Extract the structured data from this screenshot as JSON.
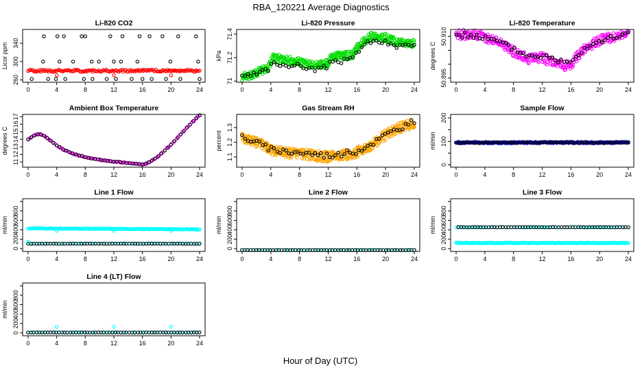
{
  "page": {
    "title": "RBA_120221  Average Diagnostics",
    "xlabel": "Hour of Day (UTC)"
  },
  "colors": {
    "black": "#000000",
    "red": "#ff0000",
    "green": "#00dd00",
    "magenta": "#ff00ff",
    "orange": "#ffa500",
    "blue": "#0000cc",
    "cyan": "#00ffff"
  },
  "chart_data": [
    {
      "id": "co2",
      "type": "scatter",
      "title": "Li-820 CO2",
      "ylabel": "Licor ppm",
      "xlim": [
        0,
        24
      ],
      "ylim": [
        255,
        370
      ],
      "xticks": [
        0,
        4,
        8,
        12,
        16,
        20,
        24
      ],
      "yticks": [
        260,
        300,
        340
      ],
      "series": [
        {
          "name": "Red",
          "color": "red",
          "x": [
            0,
            24
          ],
          "y": [
            280,
            280
          ],
          "band": 2.5,
          "n": 150,
          "seed": 1
        },
        {
          "name": "Black",
          "color": "black",
          "x": [
            0.5,
            2.1,
            2.2,
            2.8,
            3.9,
            4.1,
            4.4,
            5.0,
            5.2,
            6.3,
            7.5,
            7.8,
            8.0,
            8.9,
            9.0,
            9.9,
            11.0,
            11.5,
            12.0,
            12.3,
            13.0,
            13.2,
            14.5,
            15.3,
            15.6,
            16.0,
            17.0,
            17.3,
            18.8,
            19.3,
            19.9,
            21.0,
            21.3,
            23.5,
            23.8,
            24.0
          ],
          "y": [
            262,
            300,
            355,
            262,
            262,
            355,
            300,
            355,
            262,
            300,
            355,
            262,
            355,
            300,
            262,
            300,
            262,
            355,
            300,
            262,
            300,
            355,
            262,
            300,
            355,
            262,
            355,
            262,
            355,
            262,
            300,
            355,
            262,
            355,
            300,
            262
          ],
          "n": 0
        },
        {
          "name": "Red outliers",
          "color": "red",
          "x": [
            4,
            12,
            20
          ],
          "y": [
            270,
            270,
            270
          ],
          "n": 0
        }
      ]
    },
    {
      "id": "pressure",
      "type": "scatter",
      "title": "Li-820 Pressure",
      "ylabel": "kPa",
      "xlim": [
        0,
        24
      ],
      "ylim": [
        70.99,
        71.44
      ],
      "xticks": [
        0,
        4,
        8,
        12,
        16,
        20,
        24
      ],
      "yticks": [
        71.0,
        71.2,
        71.4
      ],
      "series": [
        {
          "name": "Green",
          "color": "green",
          "x": [
            0,
            2,
            3.8,
            4.2,
            6,
            8,
            10,
            12,
            12.5,
            14,
            15.5,
            16,
            17,
            18,
            20,
            21.5,
            22,
            24
          ],
          "y": [
            71.03,
            71.07,
            71.12,
            71.2,
            71.18,
            71.16,
            71.13,
            71.15,
            71.22,
            71.21,
            71.23,
            71.28,
            71.34,
            71.38,
            71.37,
            71.33,
            71.34,
            71.32
          ],
          "band": 0.035,
          "n": 420,
          "seed": 2
        },
        {
          "name": "Black",
          "color": "black",
          "x": [
            0,
            2,
            3.8,
            4.2,
            6,
            8,
            10,
            12,
            12.5,
            14,
            15.5,
            16,
            17,
            18,
            20,
            21.5,
            22,
            24
          ],
          "y": [
            71.03,
            71.06,
            71.1,
            71.15,
            71.14,
            71.13,
            71.1,
            71.12,
            71.18,
            71.17,
            71.19,
            71.25,
            71.31,
            71.34,
            71.33,
            71.29,
            71.31,
            71.29
          ],
          "band": 0.02,
          "n": 60,
          "seed": 3
        }
      ]
    },
    {
      "id": "li820temp",
      "type": "scatter",
      "title": "Li-820 Temperature",
      "ylabel": "degrees C",
      "xlim": [
        0,
        24
      ],
      "ylim": [
        50.8935,
        50.9125
      ],
      "xticks": [
        0,
        4,
        8,
        12,
        16,
        20,
        24
      ],
      "yticks": [
        50.895,
        50.9,
        50.905,
        50.91
      ],
      "yticklabels": [
        "50.895",
        "",
        "",
        "50.910"
      ],
      "series": [
        {
          "name": "Magenta",
          "color": "magenta",
          "x": [
            0,
            2,
            4,
            6,
            8,
            10,
            12,
            14,
            15,
            16,
            18,
            20,
            22,
            24
          ],
          "y": [
            50.9105,
            50.911,
            50.9095,
            50.908,
            50.9045,
            50.902,
            50.9025,
            50.9,
            50.8995,
            50.9,
            50.906,
            50.9085,
            50.91,
            50.9115
          ],
          "band": 0.0018,
          "n": 300,
          "seed": 4
        },
        {
          "name": "Black",
          "color": "black",
          "x": [
            0,
            2,
            4,
            6,
            8,
            10,
            12,
            14,
            15,
            16,
            18,
            20,
            22,
            24
          ],
          "y": [
            50.9105,
            50.9105,
            50.9095,
            50.908,
            50.9055,
            50.903,
            50.903,
            50.9015,
            50.901,
            50.9015,
            50.906,
            50.9085,
            50.9095,
            50.911
          ],
          "band": 0.001,
          "n": 60,
          "seed": 5
        }
      ]
    },
    {
      "id": "ambient",
      "type": "scatter",
      "title": "Ambient Box Temperature",
      "ylabel": "degrees C",
      "xlim": [
        0,
        24
      ],
      "ylim": [
        10.3,
        17.3
      ],
      "xticks": [
        0,
        4,
        8,
        12,
        16,
        20,
        24
      ],
      "yticks": [
        11,
        12,
        13,
        14,
        15,
        16,
        17
      ],
      "series": [
        {
          "name": "Magenta",
          "color": "magenta",
          "x": [
            0,
            0.5,
            1,
            1.5,
            2,
            2.5,
            3,
            4,
            5,
            6,
            7,
            8,
            9,
            10,
            11,
            12,
            13,
            14,
            15,
            16,
            16.5,
            17,
            18,
            19,
            20,
            21,
            22,
            23,
            24
          ],
          "y": [
            14.0,
            14.3,
            14.6,
            14.7,
            14.6,
            14.3,
            13.9,
            13.2,
            12.6,
            12.2,
            11.9,
            11.65,
            11.45,
            11.3,
            11.15,
            11.05,
            10.95,
            10.85,
            10.75,
            10.65,
            10.75,
            11.0,
            11.6,
            12.4,
            13.3,
            14.3,
            15.3,
            16.3,
            17.2
          ],
          "band": 0.06,
          "n": 90,
          "seed": 6
        },
        {
          "name": "Black",
          "color": "black",
          "x": [
            0,
            0.5,
            1,
            1.5,
            2,
            2.5,
            3,
            4,
            5,
            6,
            7,
            8,
            9,
            10,
            11,
            12,
            13,
            14,
            15,
            16,
            16.5,
            17,
            18,
            19,
            20,
            21,
            22,
            23,
            24
          ],
          "y": [
            14.0,
            14.3,
            14.6,
            14.7,
            14.6,
            14.3,
            13.9,
            13.2,
            12.6,
            12.2,
            11.9,
            11.65,
            11.45,
            11.3,
            11.15,
            11.05,
            10.95,
            10.85,
            10.75,
            10.65,
            10.75,
            11.0,
            11.6,
            12.4,
            13.3,
            14.3,
            15.3,
            16.3,
            17.2
          ],
          "band": 0.03,
          "n": 55,
          "seed": 7
        }
      ]
    },
    {
      "id": "rh",
      "type": "scatter",
      "title": "Gas Stream RH",
      "ylabel": "percent",
      "xlim": [
        0,
        24
      ],
      "ylim": [
        1.03,
        1.39
      ],
      "xticks": [
        0,
        4,
        8,
        12,
        16,
        20,
        24
      ],
      "yticks": [
        1.1,
        1.2,
        1.3
      ],
      "series": [
        {
          "name": "Orange",
          "color": "orange",
          "x": [
            0,
            2,
            4,
            6,
            8,
            10,
            12,
            14,
            16,
            18,
            20,
            22,
            24
          ],
          "y": [
            1.23,
            1.2,
            1.15,
            1.13,
            1.12,
            1.11,
            1.1,
            1.11,
            1.13,
            1.18,
            1.25,
            1.3,
            1.33
          ],
          "band": 0.035,
          "n": 420,
          "seed": 8
        },
        {
          "name": "Black",
          "color": "black",
          "x": [
            0,
            2,
            4,
            6,
            8,
            10,
            12,
            14,
            16,
            18,
            20,
            22,
            24
          ],
          "y": [
            1.24,
            1.2,
            1.15,
            1.14,
            1.13,
            1.12,
            1.11,
            1.12,
            1.14,
            1.19,
            1.25,
            1.3,
            1.34
          ],
          "band": 0.02,
          "n": 60,
          "seed": 9
        }
      ]
    },
    {
      "id": "sampleflow",
      "type": "scatter",
      "title": "Sample Flow",
      "ylabel": "ml/min",
      "xlim": [
        0,
        24
      ],
      "ylim": [
        -10,
        215
      ],
      "xticks": [
        0,
        4,
        8,
        12,
        16,
        20,
        24
      ],
      "yticks": [
        0,
        50,
        100,
        150,
        200
      ],
      "yticklabels": [
        "0",
        "",
        "100",
        "",
        "200"
      ],
      "series": [
        {
          "name": "Blue",
          "color": "blue",
          "x": [
            0,
            24
          ],
          "y": [
            95,
            95
          ],
          "band": 3,
          "n": 220,
          "seed": 10
        },
        {
          "name": "Black",
          "color": "black",
          "x": [
            0,
            24
          ],
          "y": [
            95,
            95
          ],
          "band": 2,
          "n": 75,
          "seed": 11
        }
      ]
    },
    {
      "id": "line1",
      "type": "scatter",
      "title": "Line 1 Flow",
      "ylabel": "ml/min",
      "xlim": [
        0,
        24
      ],
      "ylim": [
        -60,
        1060
      ],
      "xticks": [
        0,
        4,
        8,
        12,
        16,
        20,
        24
      ],
      "yticks": [
        0,
        200,
        400,
        600,
        800,
        1000
      ],
      "yticklabels": [
        "0",
        "200",
        "400",
        "600",
        "800",
        ""
      ],
      "series": [
        {
          "name": "Cyan high",
          "color": "cyan",
          "x": [
            0,
            24
          ],
          "y": [
            430,
            410
          ],
          "band": 6,
          "n": 160,
          "seed": 12
        },
        {
          "name": "Cyan low",
          "color": "cyan",
          "x": [
            0,
            24
          ],
          "y": [
            110,
            110
          ],
          "band": 3,
          "n": 40,
          "seed": 13
        },
        {
          "name": "Black",
          "color": "black",
          "x": [
            0,
            24
          ],
          "y": [
            105,
            105
          ],
          "band": 2,
          "n": 62,
          "seed": 14
        },
        {
          "name": "Cyan outliers",
          "color": "cyan",
          "x": [
            0,
            4,
            12,
            20
          ],
          "y": [
            145,
            380,
            380,
            380
          ],
          "n": 0
        }
      ]
    },
    {
      "id": "line2",
      "type": "scatter",
      "title": "Line 2 Flow",
      "ylabel": "ml/min",
      "xlim": [
        0,
        24
      ],
      "ylim": [
        -60,
        1060
      ],
      "xticks": [
        0,
        4,
        8,
        12,
        16,
        20,
        24
      ],
      "yticks": [
        0,
        200,
        400,
        600,
        800,
        1000
      ],
      "yticklabels": [
        "0",
        "200",
        "400",
        "600",
        "800",
        ""
      ],
      "series": [
        {
          "name": "Cyan",
          "color": "cyan",
          "x": [
            0,
            24
          ],
          "y": [
            -28,
            -28
          ],
          "band": 2,
          "n": 40,
          "seed": 15
        },
        {
          "name": "Black",
          "color": "black",
          "x": [
            0,
            24
          ],
          "y": [
            -30,
            -30
          ],
          "band": 1,
          "n": 62,
          "seed": 16
        }
      ]
    },
    {
      "id": "line3",
      "type": "scatter",
      "title": "Line 3 Flow",
      "ylabel": "ml/min",
      "xlim": [
        0,
        24
      ],
      "ylim": [
        -60,
        1060
      ],
      "xticks": [
        0,
        4,
        8,
        12,
        16,
        20,
        24
      ],
      "yticks": [
        0,
        200,
        400,
        600,
        800,
        1000
      ],
      "yticklabels": [
        "0",
        "200",
        "400",
        "600",
        "800",
        ""
      ],
      "series": [
        {
          "name": "Cyan high",
          "color": "cyan",
          "x": [
            0,
            24
          ],
          "y": [
            455,
            455
          ],
          "band": 5,
          "n": 60,
          "seed": 17
        },
        {
          "name": "Cyan low",
          "color": "cyan",
          "x": [
            0,
            24
          ],
          "y": [
            120,
            120
          ],
          "band": 6,
          "n": 180,
          "seed": 18
        },
        {
          "name": "Black",
          "color": "black",
          "x": [
            0.3,
            24
          ],
          "y": [
            455,
            455
          ],
          "band": 2,
          "n": 62,
          "seed": 19
        }
      ]
    },
    {
      "id": "line4",
      "type": "scatter",
      "title": "Line 4 (LT) Flow",
      "ylabel": "ml/min",
      "xlim": [
        0,
        24
      ],
      "ylim": [
        -60,
        1060
      ],
      "xticks": [
        0,
        4,
        8,
        12,
        16,
        20,
        24
      ],
      "yticks": [
        0,
        200,
        400,
        600,
        800,
        1000
      ],
      "yticklabels": [
        "0",
        "200",
        "400",
        "600",
        "800",
        ""
      ],
      "series": [
        {
          "name": "Cyan",
          "color": "cyan",
          "x": [
            0,
            24
          ],
          "y": [
            12,
            12
          ],
          "band": 3,
          "n": 40,
          "seed": 20
        },
        {
          "name": "Black",
          "color": "black",
          "x": [
            0,
            24
          ],
          "y": [
            10,
            10
          ],
          "band": 1,
          "n": 62,
          "seed": 21
        },
        {
          "name": "Cyan outliers",
          "color": "cyan",
          "x": [
            4,
            12,
            20
          ],
          "y": [
            130,
            130,
            130
          ],
          "n": 0
        }
      ]
    }
  ]
}
